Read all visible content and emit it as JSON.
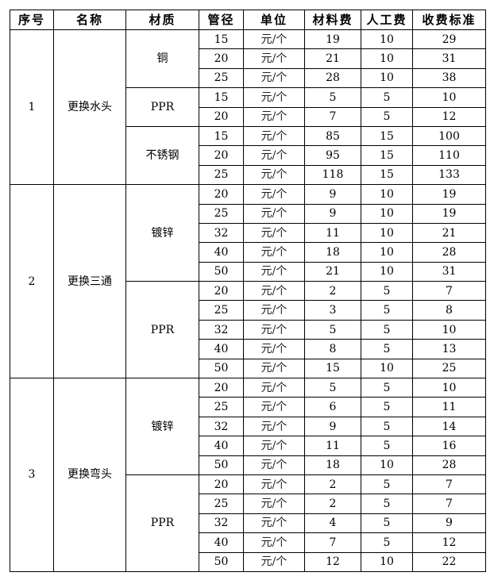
{
  "headers": [
    "序号",
    "名称",
    "材质",
    "管径",
    "单位",
    "材料费",
    "人工费",
    "收费标准"
  ],
  "items": [
    {
      "no": "1",
      "name": "更换水头",
      "materials": [
        {
          "material": "铜",
          "rows": [
            [
              "15",
              "元/个",
              "19",
              "10",
              "29"
            ],
            [
              "20",
              "元/个",
              "21",
              "10",
              "31"
            ],
            [
              "25",
              "元/个",
              "28",
              "10",
              "38"
            ]
          ]
        },
        {
          "material": "PPR",
          "rows": [
            [
              "15",
              "元/个",
              "5",
              "5",
              "10"
            ],
            [
              "20",
              "元/个",
              "7",
              "5",
              "12"
            ]
          ]
        },
        {
          "material": "不锈钢",
          "rows": [
            [
              "15",
              "元/个",
              "85",
              "15",
              "100"
            ],
            [
              "20",
              "元/个",
              "95",
              "15",
              "110"
            ],
            [
              "25",
              "元/个",
              "118",
              "15",
              "133"
            ]
          ]
        }
      ]
    },
    {
      "no": "2",
      "name": "更换三通",
      "materials": [
        {
          "material": "镀锌",
          "rows": [
            [
              "20",
              "元/个",
              "9",
              "10",
              "19"
            ],
            [
              "25",
              "元/个",
              "9",
              "10",
              "19"
            ],
            [
              "32",
              "元/个",
              "11",
              "10",
              "21"
            ],
            [
              "40",
              "元/个",
              "18",
              "10",
              "28"
            ],
            [
              "50",
              "元/个",
              "21",
              "10",
              "31"
            ]
          ]
        },
        {
          "material": "PPR",
          "rows": [
            [
              "20",
              "元/个",
              "2",
              "5",
              "7"
            ],
            [
              "25",
              "元/个",
              "3",
              "5",
              "8"
            ],
            [
              "32",
              "元/个",
              "5",
              "5",
              "10"
            ],
            [
              "40",
              "元/个",
              "8",
              "5",
              "13"
            ],
            [
              "50",
              "元/个",
              "15",
              "10",
              "25"
            ]
          ]
        }
      ]
    },
    {
      "no": "3",
      "name": "更换弯头",
      "materials": [
        {
          "material": "镀锌",
          "rows": [
            [
              "20",
              "元/个",
              "5",
              "5",
              "10"
            ],
            [
              "25",
              "元/个",
              "6",
              "5",
              "11"
            ],
            [
              "32",
              "元/个",
              "9",
              "5",
              "14"
            ],
            [
              "40",
              "元/个",
              "11",
              "5",
              "16"
            ],
            [
              "50",
              "元/个",
              "18",
              "10",
              "28"
            ]
          ]
        },
        {
          "material": "PPR",
          "rows": [
            [
              "20",
              "元/个",
              "2",
              "5",
              "7"
            ],
            [
              "25",
              "元/个",
              "2",
              "5",
              "7"
            ],
            [
              "32",
              "元/个",
              "4",
              "5",
              "9"
            ],
            [
              "40",
              "元/个",
              "7",
              "5",
              "12"
            ],
            [
              "50",
              "元/个",
              "12",
              "10",
              "22"
            ]
          ]
        }
      ]
    }
  ]
}
